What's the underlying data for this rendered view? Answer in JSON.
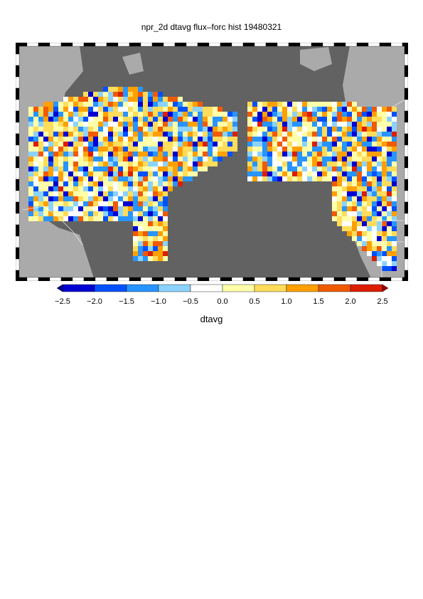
{
  "title": "npr_2d dtavg flux–forc hist 19480321",
  "colorbar": {
    "label": "dtavg",
    "min": -2.5,
    "max": 2.5,
    "tick_labels": [
      "−2.5",
      "−2.0",
      "−1.5",
      "−1.0",
      "−0.5",
      "0.0",
      "0.5",
      "1.0",
      "1.5",
      "2.0",
      "2.5"
    ],
    "colors": [
      "#00008c",
      "#0000d2",
      "#0050ff",
      "#2894ff",
      "#8cd2ff",
      "#ffffff",
      "#ffffaa",
      "#ffdc5a",
      "#ffa000",
      "#f05a00",
      "#dc1e00",
      "#960000"
    ]
  },
  "map": {
    "projection": "north pacific rim, lon-lat",
    "ocean_color": "#626262",
    "land_color": "#aaaaaa",
    "variable": "dtavg"
  }
}
